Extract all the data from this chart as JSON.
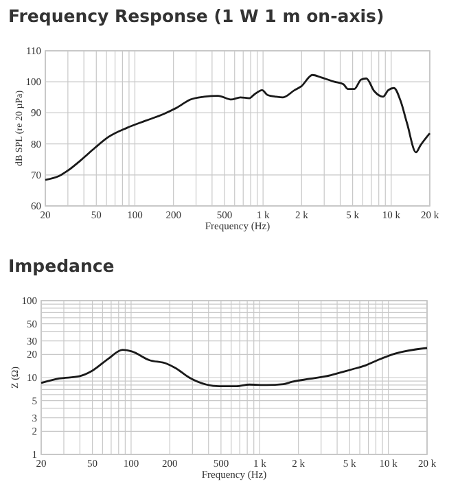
{
  "chart_data": [
    {
      "type": "line",
      "title": "Frequency Response (1 W 1 m on-axis)",
      "xlabel": "Frequency (Hz)",
      "ylabel": "dB SPL (re 20 µPa)",
      "log": "x",
      "grid": true,
      "marker": "none",
      "line_style": "solid",
      "xlim": [
        20,
        20000
      ],
      "ylim": [
        60,
        110
      ],
      "xticks": [
        20,
        {
          "value": 30,
          "label": null
        },
        {
          "value": 40,
          "label": null
        },
        50,
        {
          "value": 60,
          "label": null
        },
        {
          "value": 70,
          "label": null
        },
        {
          "value": 80,
          "label": null
        },
        {
          "value": 90,
          "label": null
        },
        100,
        200,
        {
          "value": 300,
          "label": null
        },
        {
          "value": 400,
          "label": null
        },
        500,
        {
          "value": 600,
          "label": null
        },
        {
          "value": 700,
          "label": null
        },
        {
          "value": 800,
          "label": null
        },
        {
          "value": 900,
          "label": null
        },
        {
          "value": 1000,
          "label": "1 k"
        },
        {
          "value": 2000,
          "label": "2 k"
        },
        {
          "value": 3000,
          "label": null
        },
        {
          "value": 4000,
          "label": null
        },
        {
          "value": 5000,
          "label": "5 k"
        },
        {
          "value": 6000,
          "label": null
        },
        {
          "value": 7000,
          "label": null
        },
        {
          "value": 8000,
          "label": null
        },
        {
          "value": 9000,
          "label": null
        },
        {
          "value": 10000,
          "label": "10 k"
        },
        {
          "value": 20000,
          "label": "20 k"
        }
      ],
      "yticks": [
        60,
        70,
        80,
        90,
        100,
        110
      ],
      "series": [
        {
          "color": "#1a1a1a",
          "x": [
            20,
            25.5,
            30,
            38,
            49,
            62,
            87,
            120,
            167,
            213,
            271,
            347,
            445,
            566,
            666,
            782,
            853,
            985,
            1080,
            1270,
            1430,
            1760,
            1980,
            2430,
            2850,
            3610,
            4240,
            4590,
            5160,
            5820,
            6390,
            7370,
            8630,
            9480,
            10500,
            11800,
            13300,
            15600,
            16900,
            20000
          ],
          "values": [
            68.4,
            69.6,
            71.4,
            74.8,
            78.8,
            82.2,
            85.2,
            87.4,
            89.6,
            91.7,
            94.3,
            95.2,
            95.5,
            94.3,
            95.0,
            94.7,
            95.9,
            97.3,
            95.8,
            95.2,
            95.0,
            97.3,
            98.5,
            102.2,
            101.4,
            100.0,
            99.2,
            97.7,
            97.7,
            100.7,
            101.1,
            97.0,
            95.2,
            97.3,
            98.0,
            94.0,
            86.6,
            77.3,
            79.5,
            83.4
          ]
        }
      ]
    },
    {
      "type": "line",
      "title": "Impedance",
      "xlabel": "Frequency (Hz)",
      "ylabel": "Z (Ω)",
      "log": "xy",
      "grid": true,
      "marker": "none",
      "line_style": "solid",
      "xlim": [
        20,
        20000
      ],
      "ylim": [
        1,
        100
      ],
      "xticks": [
        20,
        {
          "value": 30,
          "label": null
        },
        {
          "value": 40,
          "label": null
        },
        50,
        {
          "value": 60,
          "label": null
        },
        {
          "value": 70,
          "label": null
        },
        {
          "value": 80,
          "label": null
        },
        {
          "value": 90,
          "label": null
        },
        100,
        200,
        {
          "value": 300,
          "label": null
        },
        {
          "value": 400,
          "label": null
        },
        500,
        {
          "value": 600,
          "label": null
        },
        {
          "value": 700,
          "label": null
        },
        {
          "value": 800,
          "label": null
        },
        {
          "value": 900,
          "label": null
        },
        {
          "value": 1000,
          "label": "1 k"
        },
        {
          "value": 2000,
          "label": "2 k"
        },
        {
          "value": 3000,
          "label": null
        },
        {
          "value": 4000,
          "label": null
        },
        {
          "value": 5000,
          "label": "5 k"
        },
        {
          "value": 6000,
          "label": null
        },
        {
          "value": 7000,
          "label": null
        },
        {
          "value": 8000,
          "label": null
        },
        {
          "value": 9000,
          "label": null
        },
        {
          "value": 10000,
          "label": "10 k"
        },
        {
          "value": 20000,
          "label": "20 k"
        }
      ],
      "yticks": [
        1,
        2,
        3,
        {
          "value": 4,
          "label": null
        },
        5,
        {
          "value": 6,
          "label": null
        },
        {
          "value": 7,
          "label": null
        },
        {
          "value": 8,
          "label": null
        },
        {
          "value": 9,
          "label": null
        },
        10,
        20,
        30,
        {
          "value": 40,
          "label": null
        },
        50,
        {
          "value": 60,
          "label": null
        },
        {
          "value": 70,
          "label": null
        },
        {
          "value": 80,
          "label": null
        },
        {
          "value": 90,
          "label": null
        },
        100
      ],
      "series": [
        {
          "color": "#1a1a1a",
          "x": [
            20,
            27.5,
            39.6,
            50,
            66,
            86,
            101,
            138,
            190,
            223,
            283,
            385,
            485,
            659,
            830,
            1130,
            1530,
            1790,
            2430,
            3570,
            4160,
            5240,
            6580,
            8280,
            11300,
            20000
          ],
          "values": [
            8.5,
            9.7,
            10.4,
            12.3,
            17.4,
            22.9,
            21.9,
            16.9,
            15.1,
            13.2,
            10.0,
            8.1,
            7.7,
            7.7,
            8.1,
            8.0,
            8.2,
            8.8,
            9.6,
            10.7,
            11.5,
            12.8,
            14.3,
            16.9,
            20.5,
            24.2
          ]
        }
      ]
    }
  ]
}
